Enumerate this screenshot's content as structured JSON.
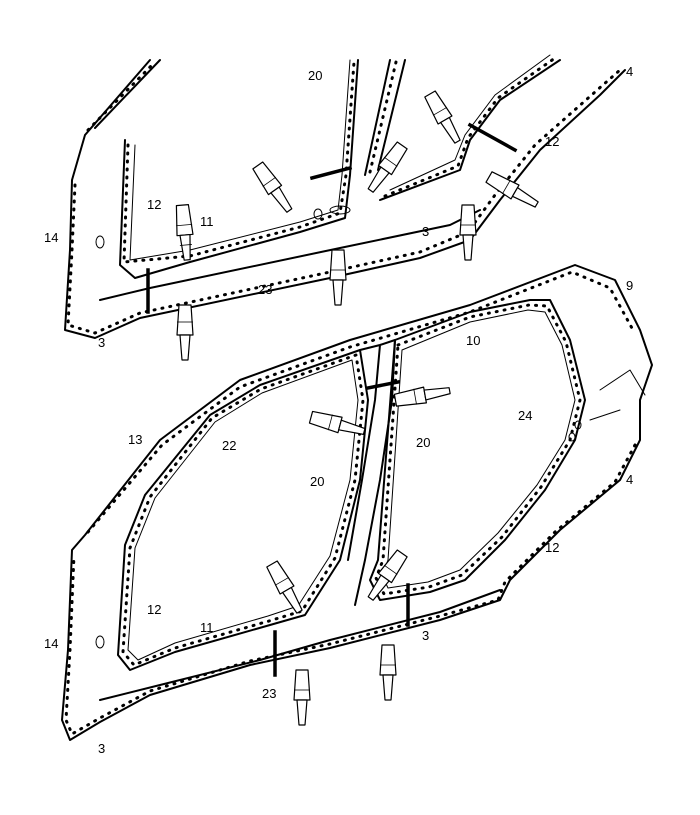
{
  "diagram": {
    "upper_view": {
      "labels": [
        "20",
        "4",
        "12",
        "12",
        "11",
        "14",
        "3",
        "23",
        "3"
      ]
    },
    "lower_view": {
      "labels": [
        "9",
        "10",
        "13",
        "22",
        "24",
        "20",
        "20",
        "4",
        "12",
        "12",
        "11",
        "14",
        "23",
        "3",
        "3"
      ]
    },
    "line_color": "#000000",
    "background_color": "#ffffff",
    "icons": [
      "welding-clamp-icon",
      "cut-line-marker"
    ]
  }
}
